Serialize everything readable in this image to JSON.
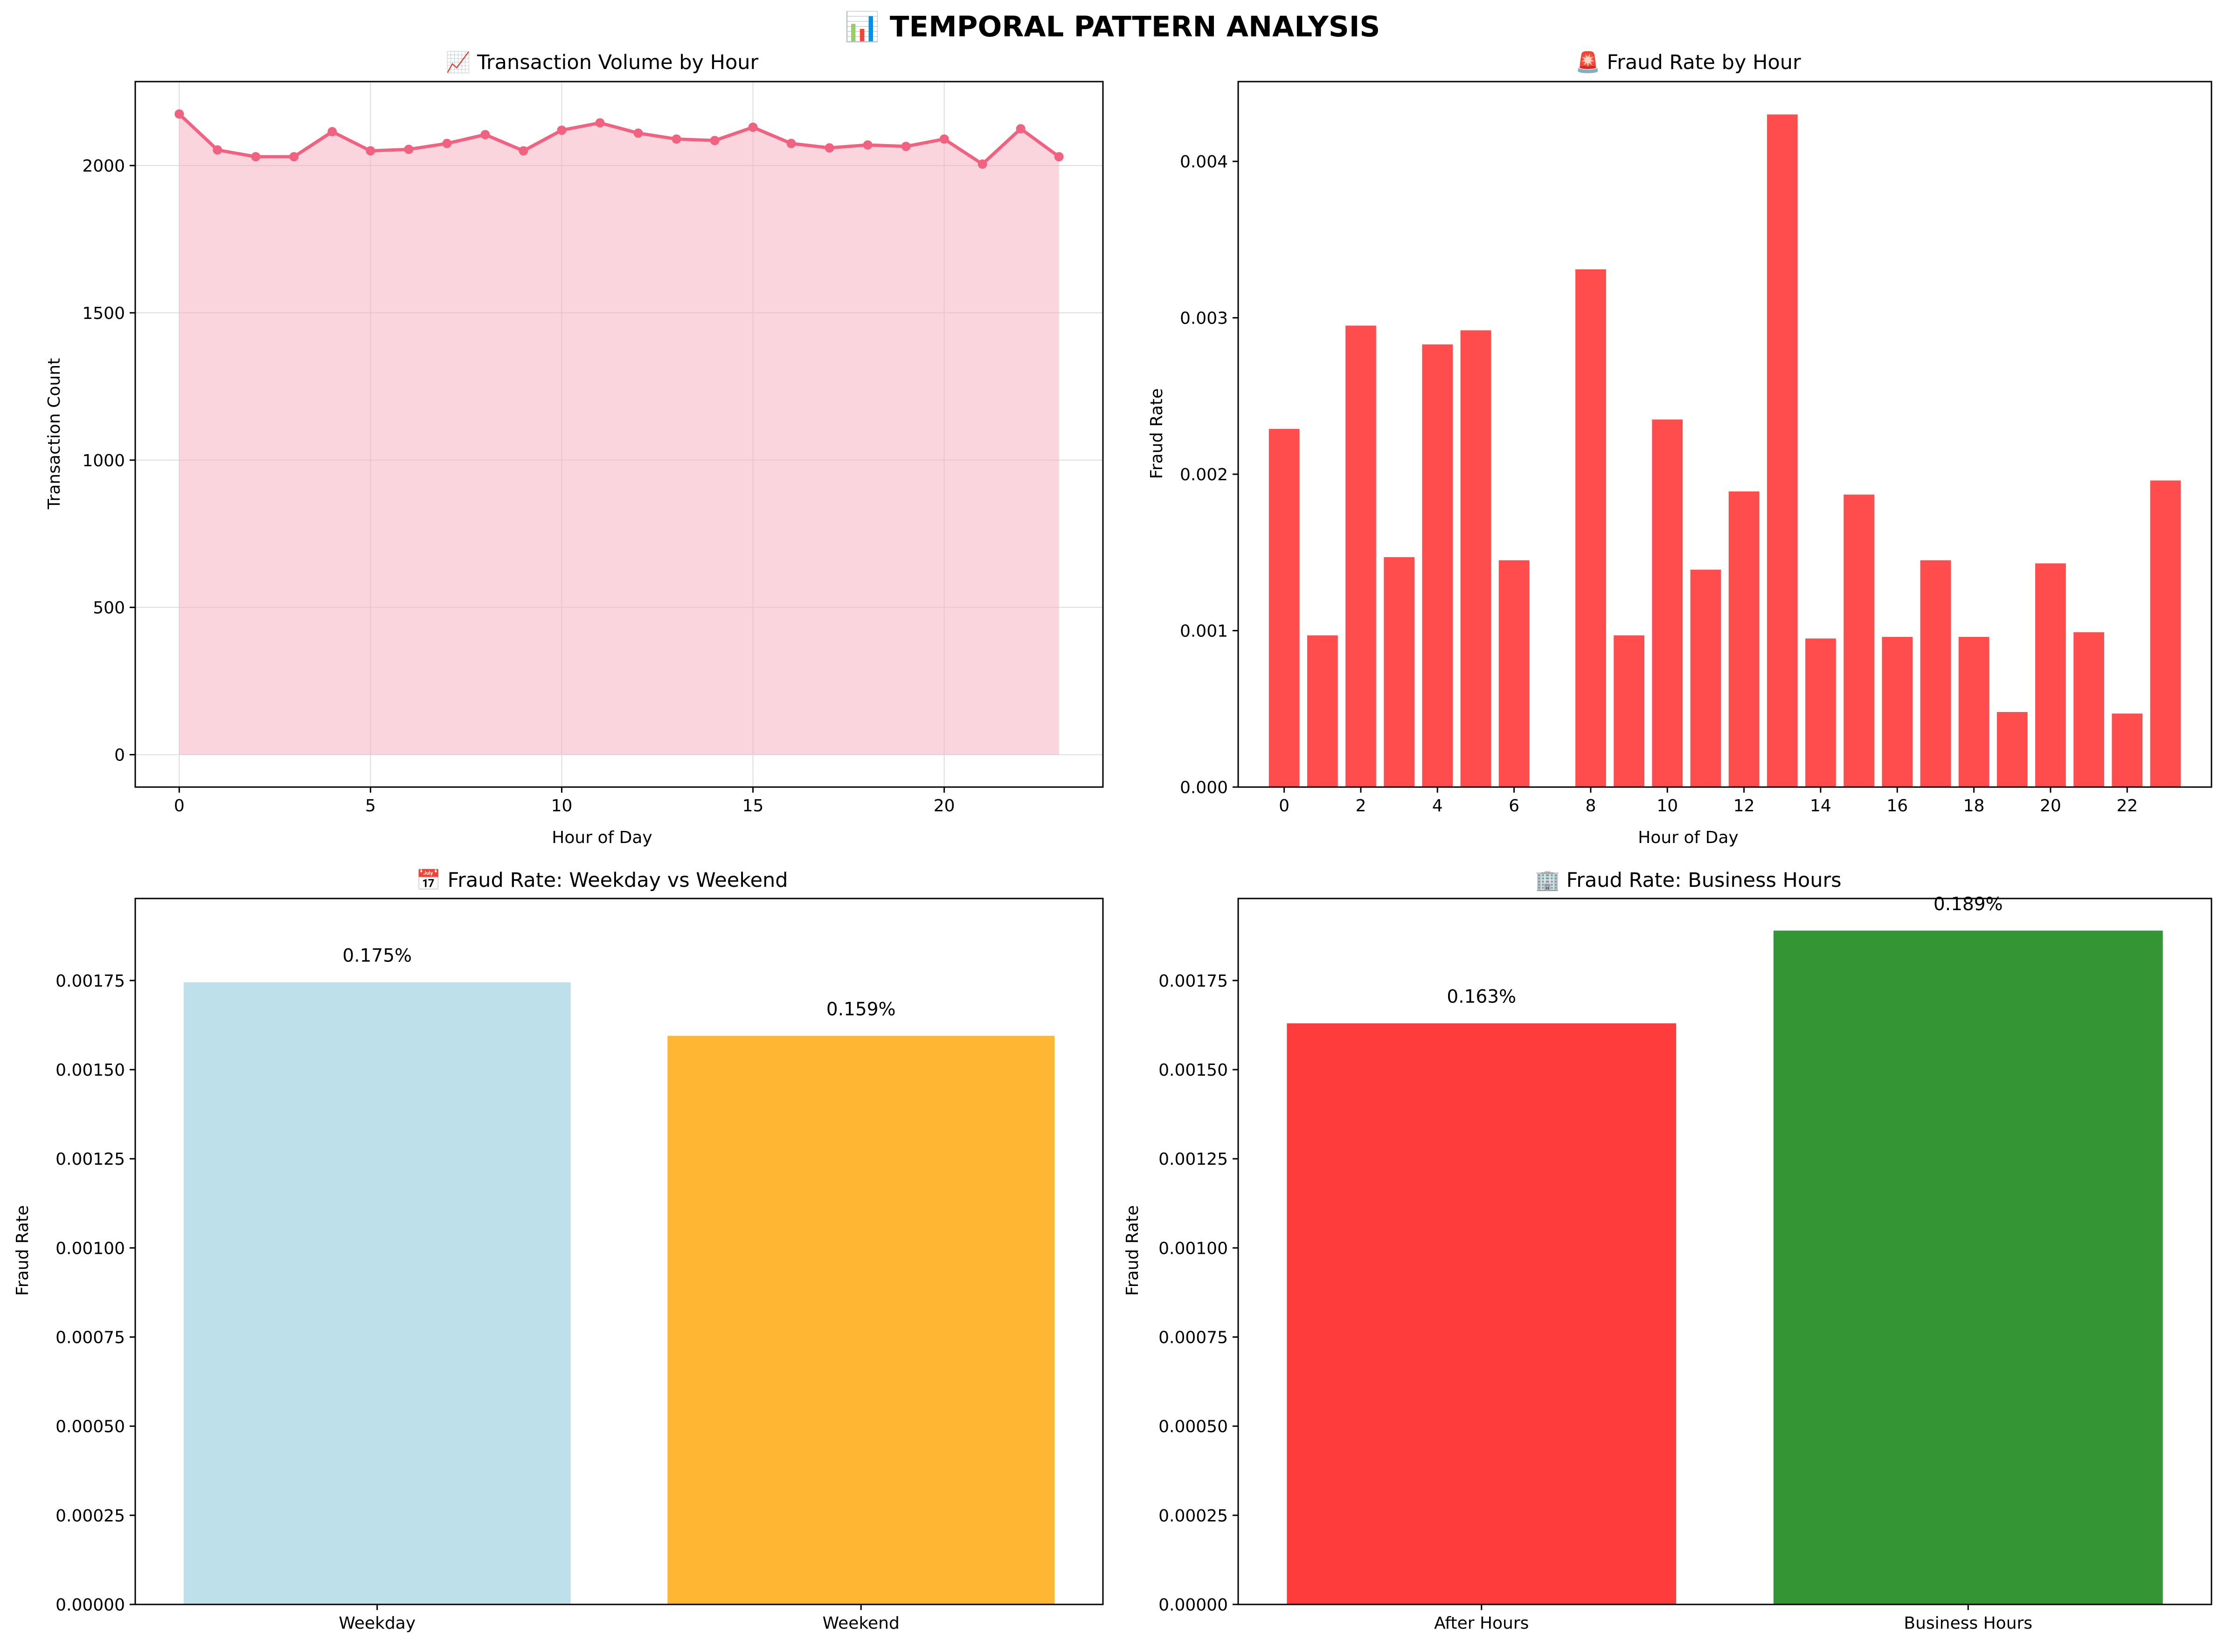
{
  "figure_title": "📊 TEMPORAL PATTERN ANALYSIS",
  "colors": {
    "line": "#f0627f",
    "area": "#f7b2c1",
    "bar_hour": "#ff4d4d",
    "weekday": "#add8e6",
    "weekend": "#ffa500",
    "after_hours": "#ff1a1a",
    "business_hours": "#0f820f",
    "grid": "#dcdcdc"
  },
  "chart_data": [
    {
      "id": "volume",
      "type": "line",
      "title": "📈 Transaction Volume by Hour",
      "xlabel": "Hour of Day",
      "ylabel": "Transaction Count",
      "x": [
        0,
        1,
        2,
        3,
        4,
        5,
        6,
        7,
        8,
        9,
        10,
        11,
        12,
        13,
        14,
        15,
        16,
        17,
        18,
        19,
        20,
        21,
        22,
        23
      ],
      "values": [
        2175,
        2053,
        2030,
        2030,
        2115,
        2050,
        2055,
        2075,
        2105,
        2050,
        2120,
        2145,
        2110,
        2090,
        2085,
        2130,
        2075,
        2060,
        2070,
        2065,
        2090,
        2005,
        2125,
        2030
      ],
      "xlim": [
        -1.15,
        24.15
      ],
      "ylim": [
        -110,
        2285
      ],
      "xticks": [
        "0",
        "5",
        "10",
        "15",
        "20"
      ],
      "xtick_values": [
        0,
        5,
        10,
        15,
        20
      ],
      "yticks": [
        "0",
        "500",
        "1000",
        "1500",
        "2000"
      ],
      "ytick_values": [
        0,
        500,
        1000,
        1500,
        2000
      ],
      "grid": true,
      "fill_area": true
    },
    {
      "id": "fraud_hour",
      "type": "bar",
      "title": "🚨 Fraud Rate by Hour",
      "xlabel": "Hour of Day",
      "ylabel": "Fraud Rate",
      "x": [
        0,
        1,
        2,
        3,
        4,
        5,
        6,
        8,
        9,
        10,
        11,
        12,
        13,
        14,
        15,
        16,
        17,
        18,
        19,
        20,
        21,
        22,
        23
      ],
      "values": [
        0.00229,
        0.00097,
        0.00295,
        0.00147,
        0.00283,
        0.00292,
        0.00145,
        0.00331,
        0.00097,
        0.00235,
        0.00139,
        0.00189,
        0.0043,
        0.00095,
        0.00187,
        0.00096,
        0.00145,
        0.00096,
        0.00048,
        0.00143,
        0.00099,
        0.00047,
        0.00196
      ],
      "xlim": [
        -1.2,
        24.2
      ],
      "ylim": [
        0,
        0.00451
      ],
      "xticks": [
        "0",
        "2",
        "4",
        "6",
        "8",
        "10",
        "12",
        "14",
        "16",
        "18",
        "20",
        "22"
      ],
      "xtick_values": [
        0,
        2,
        4,
        6,
        8,
        10,
        12,
        14,
        16,
        18,
        20,
        22
      ],
      "yticks": [
        "0.000",
        "0.001",
        "0.002",
        "0.003",
        "0.004"
      ],
      "ytick_values": [
        0,
        0.001,
        0.002,
        0.003,
        0.004
      ],
      "grid": false
    },
    {
      "id": "weekday",
      "type": "bar",
      "title": "📅 Fraud Rate: Weekday vs Weekend",
      "xlabel": "",
      "ylabel": "Fraud Rate",
      "categories": [
        "Weekday",
        "Weekend"
      ],
      "values": [
        0.001745,
        0.001595
      ],
      "data_labels": [
        "0.175%",
        "0.159%"
      ],
      "ylim": [
        0,
        0.00198
      ],
      "yticks": [
        "0.00000",
        "0.00025",
        "0.00050",
        "0.00075",
        "0.00100",
        "0.00125",
        "0.00150",
        "0.00175"
      ],
      "ytick_values": [
        0,
        0.00025,
        0.0005,
        0.00075,
        0.001,
        0.00125,
        0.0015,
        0.00175
      ],
      "grid": false
    },
    {
      "id": "business",
      "type": "bar",
      "title": "🏢 Fraud Rate: Business Hours",
      "xlabel": "",
      "ylabel": "Fraud Rate",
      "categories": [
        "After Hours",
        "Business Hours"
      ],
      "values": [
        0.00163,
        0.00189
      ],
      "data_labels": [
        "0.163%",
        "0.189%"
      ],
      "ylim": [
        0,
        0.00198
      ],
      "yticks": [
        "0.00000",
        "0.00025",
        "0.00050",
        "0.00075",
        "0.00100",
        "0.00125",
        "0.00150",
        "0.00175"
      ],
      "ytick_values": [
        0,
        0.00025,
        0.0005,
        0.00075,
        0.001,
        0.00125,
        0.0015,
        0.00175
      ],
      "grid": false
    }
  ]
}
